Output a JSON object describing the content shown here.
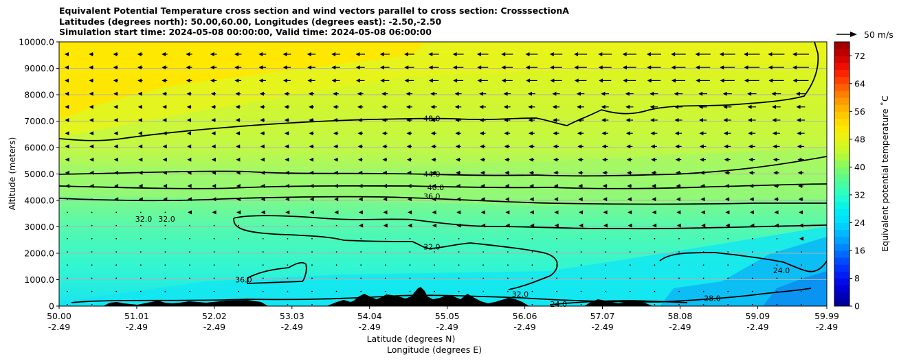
{
  "chart_data": {
    "type": "heatmap",
    "title_lines": [
      "Equivalent Potential Temperature cross section and wind vectors parallel to cross section: CrosssectionA",
      "Latitudes (degrees north): 50.00,60.00, Longitudes (degrees east): -2.50,-2.50",
      "Simulation start time: 2024-05-08 00:00:00, Valid time: 2024-05-08 06:00:00"
    ],
    "ylabel": "Altitude (meters)",
    "xlabel": "Latitude (degrees N)",
    "xlabel2": "Longitude (degrees E)",
    "colorbar_label": "Equivalent potential temperature ˚C",
    "quiver_key": "50 m/s",
    "xlim": [
      50.0,
      59.99
    ],
    "ylim": [
      0,
      10000
    ],
    "grid": "horizontal",
    "x_ticks": [
      {
        "lat": "50.00",
        "lon": "-2.49",
        "v": 50.0
      },
      {
        "lat": "51.01",
        "lon": "-2.49",
        "v": 51.01
      },
      {
        "lat": "52.02",
        "lon": "-2.49",
        "v": 52.02
      },
      {
        "lat": "53.03",
        "lon": "-2.49",
        "v": 53.03
      },
      {
        "lat": "54.04",
        "lon": "-2.49",
        "v": 54.04
      },
      {
        "lat": "55.05",
        "lon": "-2.49",
        "v": 55.05
      },
      {
        "lat": "56.06",
        "lon": "-2.49",
        "v": 56.06
      },
      {
        "lat": "57.07",
        "lon": "-2.49",
        "v": 57.07
      },
      {
        "lat": "58.08",
        "lon": "-2.49",
        "v": 58.08
      },
      {
        "lat": "59.09",
        "lon": "-2.49",
        "v": 59.09
      },
      {
        "lat": "59.99",
        "lon": "-2.49",
        "v": 59.99
      }
    ],
    "y_ticks": [
      {
        "label": "0",
        "v": 0
      },
      {
        "label": "1000.0",
        "v": 1000
      },
      {
        "label": "2000.0",
        "v": 2000
      },
      {
        "label": "3000.0",
        "v": 3000
      },
      {
        "label": "4000.0",
        "v": 4000
      },
      {
        "label": "5000.0",
        "v": 5000
      },
      {
        "label": "6000.0",
        "v": 6000
      },
      {
        "label": "7000.0",
        "v": 7000
      },
      {
        "label": "8000.0",
        "v": 8000
      },
      {
        "label": "9000.0",
        "v": 9000
      },
      {
        "label": "10000.0",
        "v": 10000
      }
    ],
    "colorbar_ticks": [
      {
        "label": "0",
        "v": 0
      },
      {
        "label": "8",
        "v": 8
      },
      {
        "label": "16",
        "v": 16
      },
      {
        "label": "24",
        "v": 24
      },
      {
        "label": "32",
        "v": 32
      },
      {
        "label": "40",
        "v": 40
      },
      {
        "label": "48",
        "v": 48
      },
      {
        "label": "56",
        "v": 56
      },
      {
        "label": "64",
        "v": 64
      },
      {
        "label": "72",
        "v": 72
      }
    ],
    "colorbar_range": [
      0,
      76
    ],
    "contour_labels": [
      {
        "text": "48.0",
        "x": 54.85,
        "y": 7100
      },
      {
        "text": "44.0",
        "x": 54.85,
        "y": 5000
      },
      {
        "text": "40.0",
        "x": 54.9,
        "y": 4500
      },
      {
        "text": "36.0",
        "x": 54.85,
        "y": 4150
      },
      {
        "text": "32.0",
        "x": 54.85,
        "y": 2250
      },
      {
        "text": "32.0",
        "x": 51.1,
        "y": 3300
      },
      {
        "text": "32.0",
        "x": 51.4,
        "y": 3300
      },
      {
        "text": "36.0",
        "x": 52.4,
        "y": 1000
      },
      {
        "text": "32.0",
        "x": 56.0,
        "y": 450
      },
      {
        "text": "28.0",
        "x": 58.5,
        "y": 300
      },
      {
        "text": "24.0",
        "x": 56.5,
        "y": 80
      },
      {
        "text": "24.0",
        "x": 59.4,
        "y": 1350
      }
    ]
  }
}
